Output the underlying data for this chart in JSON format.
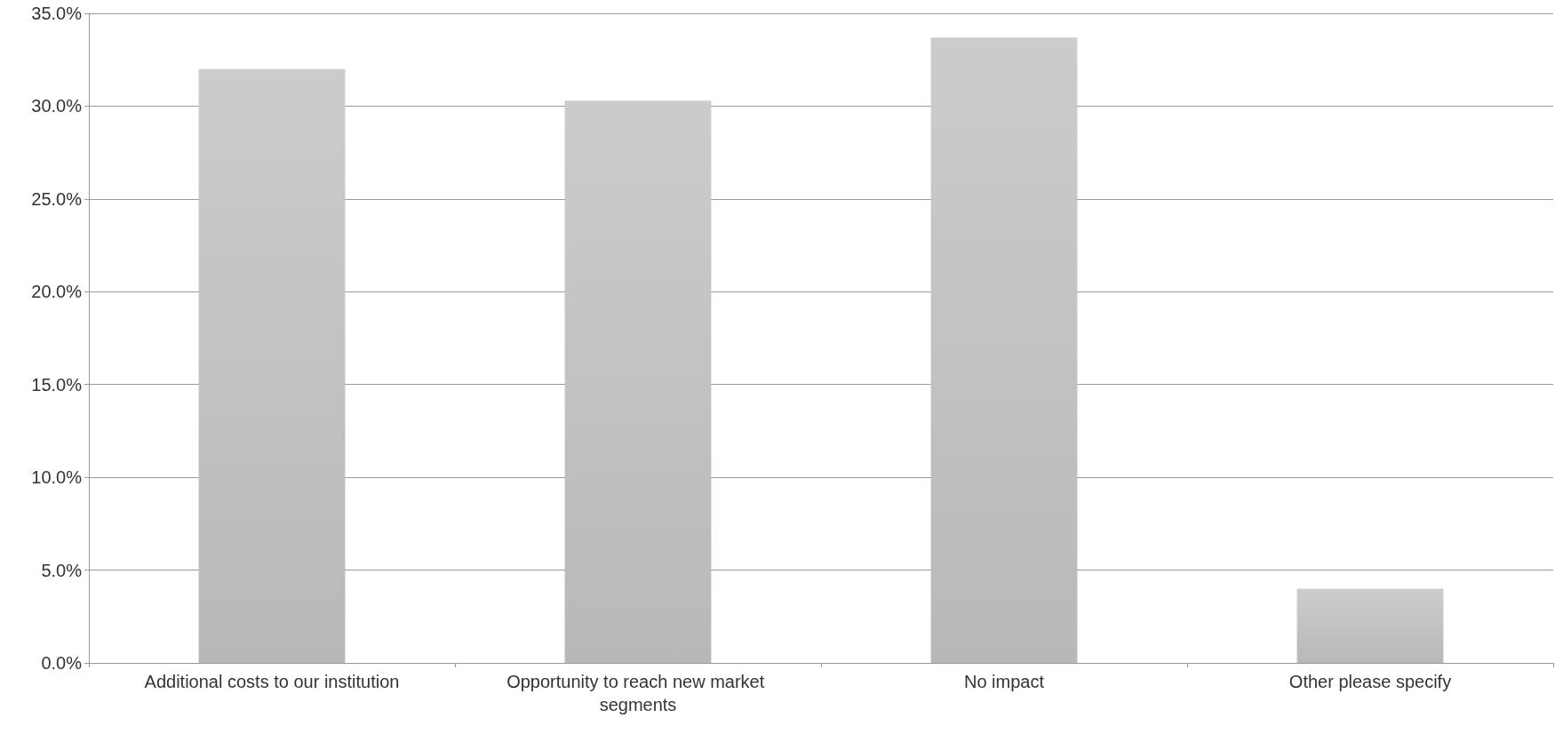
{
  "chart_data": {
    "type": "bar",
    "categories": [
      "Additional costs to our institution",
      "Opportunity to reach new market segments",
      "No impact",
      "Other please specify"
    ],
    "values": [
      32.0,
      30.3,
      33.7,
      4.0
    ],
    "color": "#b8b8b8",
    "ylim": [
      0,
      35
    ],
    "yticks": [
      {
        "value": 0,
        "label": "0.0%"
      },
      {
        "value": 5,
        "label": "5.0%"
      },
      {
        "value": 10,
        "label": "10.0%"
      },
      {
        "value": 15,
        "label": "15.0%"
      },
      {
        "value": 20,
        "label": "20.0%"
      },
      {
        "value": 25,
        "label": "25.0%"
      },
      {
        "value": 30,
        "label": "30.0%"
      },
      {
        "value": 35,
        "label": "35.0%"
      }
    ],
    "grid": "y"
  }
}
